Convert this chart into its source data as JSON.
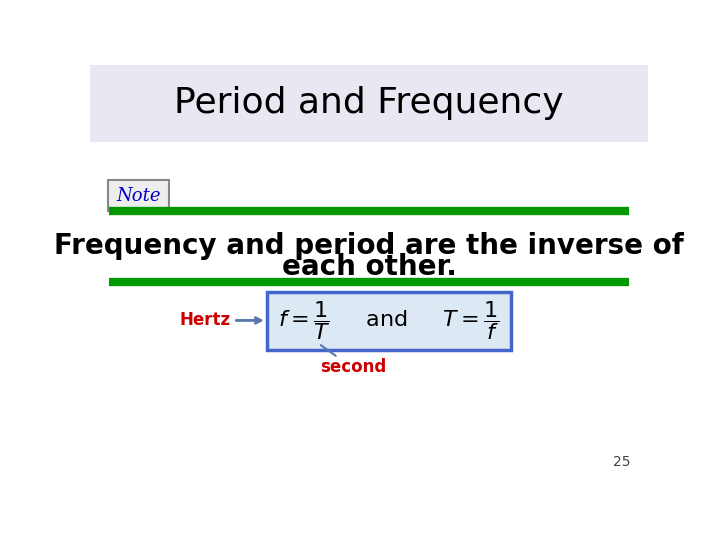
{
  "title": "Period and Frequency",
  "title_bg_color": "#e8e8f2",
  "title_fontsize": 26,
  "note_label": "Note",
  "note_color": "#0000cc",
  "green_line_color": "#009900",
  "body_text_line1": "Frequency and period are the inverse of",
  "body_text_line2": "each other.",
  "body_fontsize": 20,
  "hertz_label": "Hertz",
  "hertz_color": "#cc0000",
  "formula_box_color": "#4466cc",
  "formula_box_bg": "#dde8f5",
  "formula_text": "$f = \\dfrac{1}{T}$     and     $T = \\dfrac{1}{f}$",
  "second_label": "second",
  "second_color": "#cc0000",
  "arrow_color": "#5577aa",
  "page_number": "25",
  "bg_color": "#ffffff"
}
